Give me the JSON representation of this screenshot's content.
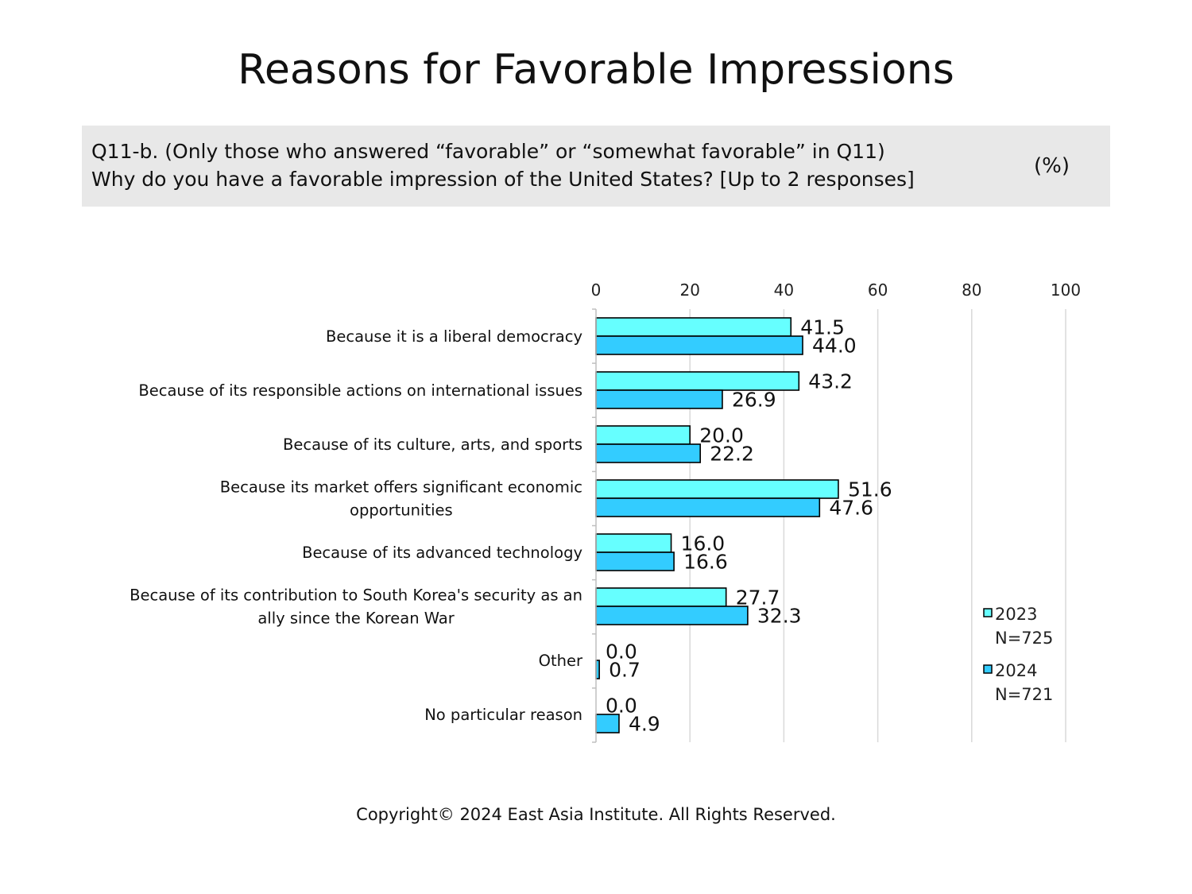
{
  "page": {
    "title": "Reasons for Favorable Impressions",
    "question_line1": "Q11-b. (Only those who answered “favorable” or “somewhat favorable” in Q11)",
    "question_line2": "Why do you have a favorable impression of the United States? [Up to 2 responses]",
    "unit": "(%)",
    "copyright": "Copyright© 2024 East Asia Institute. All Rights Reserved."
  },
  "chart_data": {
    "type": "bar",
    "orientation": "horizontal",
    "categories": [
      [
        "Because it is a liberal democracy"
      ],
      [
        "Because of its responsible actions on international issues"
      ],
      [
        "Because of its  culture, arts, and sports"
      ],
      [
        "Because its market offers significant economic",
        "opportunities"
      ],
      [
        "Because of its advanced technology"
      ],
      [
        "Because of its contribution to South Korea's security as an",
        "ally since the Korean War"
      ],
      [
        "Other"
      ],
      [
        "No particular reason"
      ]
    ],
    "series": [
      {
        "name": "2023",
        "sample": "N=725",
        "color": "#66ffff",
        "values": [
          41.5,
          43.2,
          20.0,
          51.6,
          16.0,
          27.7,
          0.0,
          0.0
        ],
        "labels": [
          "41.5",
          "43.2",
          "20.0",
          "51.6",
          "16.0",
          "27.7",
          "0.0",
          "0.0"
        ]
      },
      {
        "name": "2024",
        "sample": "N=721",
        "color": "#33ccff",
        "values": [
          44.0,
          26.9,
          22.2,
          47.6,
          16.6,
          32.3,
          0.7,
          4.9
        ],
        "labels": [
          "44.0",
          "26.9",
          "22.2",
          "47.6",
          "16.6",
          "32.3",
          "0.7",
          "4.9"
        ]
      }
    ],
    "xlim": [
      0,
      100
    ],
    "xticks": [
      0,
      20,
      40,
      60,
      80,
      100
    ],
    "axis_position": "top",
    "grid": true,
    "legend": "bottom-right"
  }
}
